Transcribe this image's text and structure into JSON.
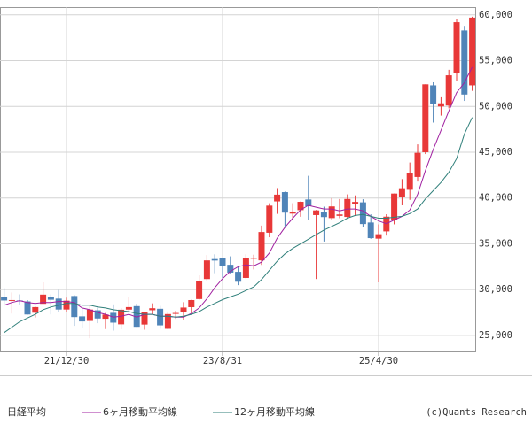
{
  "chart_data": {
    "type": "candlestick",
    "categories": [
      null,
      null,
      null,
      null,
      null,
      null,
      null,
      null,
      "21/12/30",
      null,
      null,
      null,
      null,
      null,
      null,
      null,
      null,
      null,
      null,
      null,
      null,
      null,
      null,
      null,
      null,
      null,
      null,
      null,
      "23/8/31",
      null,
      null,
      null,
      null,
      null,
      null,
      null,
      null,
      null,
      null,
      null,
      null,
      null,
      null,
      null,
      null,
      null,
      null,
      null,
      "25/4/30",
      null,
      null,
      null,
      null,
      null,
      null,
      null,
      null,
      null,
      null,
      null,
      null
    ],
    "ylim": [
      23250,
      60850
    ],
    "yticks": [
      {
        "value": 25000,
        "label": "25,000"
      },
      {
        "value": 30000,
        "label": "30,000"
      },
      {
        "value": 35000,
        "label": "35,000"
      },
      {
        "value": 40000,
        "label": "40,000"
      },
      {
        "value": 45000,
        "label": "45,000"
      },
      {
        "value": 50000,
        "label": "50,000"
      },
      {
        "value": 55000,
        "label": "55,000"
      },
      {
        "value": 60000,
        "label": "60,000"
      }
    ],
    "grid": true,
    "credit": "(c)Quants Research",
    "series": [
      {
        "name": "日経平均",
        "up_color": "#e83838",
        "down_color": "#4f84b8",
        "open": [
          29179,
          28815,
          28814,
          28707,
          27477,
          28451,
          29235,
          29018,
          27824,
          29302,
          27078,
          26581,
          27737,
          26818,
          27462,
          26209,
          27815,
          28197,
          26185,
          27749,
          27906,
          25717,
          27402,
          27502,
          28085,
          28968,
          31152,
          33333,
          33447,
          32709,
          31940,
          31275,
          33432,
          33193,
          36211,
          39629,
          40646,
          38300,
          38676,
          39839,
          38140,
          38423,
          37809,
          38053,
          37936,
          39307,
          39526,
          37326,
          35560,
          36356,
          37592,
          40150,
          40900,
          42300,
          45000,
          52300,
          50000,
          50100,
          53600,
          58300,
          52300
        ],
        "high": [
          30167,
          29686,
          29480,
          28852,
          28139,
          30796,
          29489,
          29960,
          29121,
          29389,
          27880,
          28338,
          28062,
          27458,
          28389,
          27993,
          29222,
          28451,
          27587,
          28502,
          28226,
          27617,
          27696,
          28624,
          28879,
          31560,
          33772,
          33853,
          33488,
          33634,
          32533,
          33853,
          33811,
          36984,
          39427,
          41087,
          40697,
          39437,
          39623,
          42426,
          38693,
          39053,
          39981,
          39885,
          40399,
          40288,
          39864,
          38221,
          37118,
          38229,
          40487,
          42065,
          43876,
          45852,
          52411,
          52636,
          51000,
          54000,
          59500,
          58800,
          59800
        ],
        "low": [
          28420,
          27385,
          28380,
          27272,
          26954,
          28451,
          27294,
          27588,
          27594,
          26045,
          25776,
          24682,
          26335,
          25688,
          25520,
          25662,
          27661,
          25938,
          25621,
          27284,
          25720,
          25662,
          26808,
          26632,
          27427,
          28855,
          31003,
          31791,
          31275,
          31674,
          30487,
          31210,
          32205,
          32693,
          35715,
          38271,
          36733,
          37617,
          37950,
          37611,
          31156,
          35247,
          37651,
          37798,
          37842,
          38055,
          36793,
          35542,
          30793,
          35894,
          37125,
          39201,
          39800,
          41800,
          44800,
          48235,
          49000,
          49800,
          52800,
          50600,
          51700
        ],
        "close": [
          28813,
          28860,
          28792,
          27284,
          28090,
          29453,
          28893,
          27822,
          28792,
          27002,
          26527,
          27821,
          26848,
          27280,
          26393,
          27802,
          28092,
          25938,
          27587,
          27969,
          26095,
          27327,
          27446,
          28041,
          28856,
          30888,
          33189,
          33172,
          32619,
          31857,
          30859,
          33487,
          33464,
          36287,
          39166,
          40369,
          38406,
          38488,
          39583,
          39102,
          38648,
          37920,
          39081,
          38208,
          39895,
          39573,
          37156,
          35618,
          36045,
          37965,
          40487,
          41069,
          42718,
          44932,
          52411,
          50254,
          50340,
          53400,
          59200,
          51300,
          59700
        ]
      },
      {
        "name": "6ヶ月移動平均線",
        "type": "line",
        "color": "#a020a0",
        "values": [
          28300,
          28600,
          28800,
          28600,
          28500,
          28600,
          28600,
          28700,
          28700,
          28600,
          28000,
          27800,
          27500,
          27300,
          27000,
          27100,
          27300,
          27000,
          27300,
          27300,
          27100,
          27100,
          27000,
          27000,
          27400,
          28000,
          29000,
          30200,
          31200,
          32000,
          32500,
          32700,
          32600,
          33000,
          34000,
          35600,
          36800,
          37800,
          38700,
          39200,
          39000,
          38800,
          38800,
          38600,
          38800,
          38800,
          38600,
          38000,
          37500,
          37200,
          37600,
          38000,
          38700,
          40400,
          43000,
          45300,
          47400,
          49500,
          51500,
          52600,
          54300
        ]
      },
      {
        "name": "12ヶ月移動平均線",
        "type": "line",
        "color": "#2f7f7a",
        "values": [
          25300,
          25900,
          26500,
          26900,
          27300,
          27800,
          28100,
          28300,
          28500,
          28500,
          28300,
          28300,
          28100,
          28000,
          27800,
          27700,
          27600,
          27400,
          27300,
          27300,
          27100,
          27100,
          27000,
          27100,
          27300,
          27600,
          28100,
          28500,
          28900,
          29200,
          29500,
          29900,
          30300,
          31100,
          32100,
          33100,
          33900,
          34500,
          35000,
          35500,
          36000,
          36500,
          36900,
          37300,
          37800,
          38100,
          38200,
          38000,
          37800,
          37800,
          37900,
          38000,
          38300,
          38800,
          39900,
          40800,
          41700,
          42800,
          44300,
          47000,
          48800
        ]
      }
    ]
  }
}
